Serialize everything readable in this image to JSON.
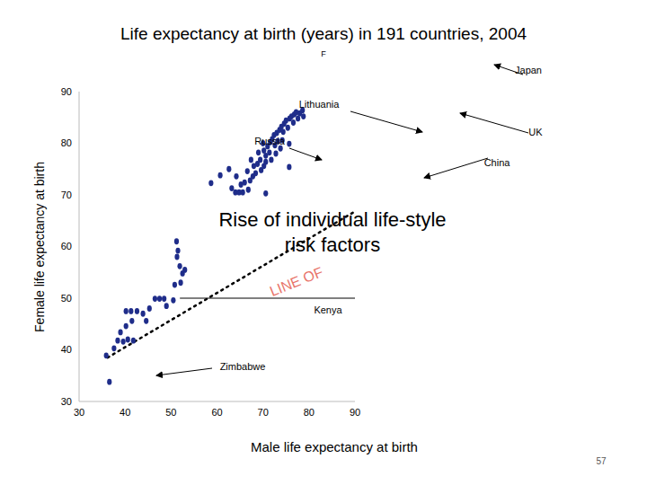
{
  "page_number": "57",
  "chart_data": {
    "type": "scatter",
    "title": "Life expectancy at birth (years) in 191 countries, 2004",
    "subtitle": "F",
    "x_label": "Male life expectancy at birth",
    "y_label": "Female life expectancy at birth",
    "xlim": [
      30,
      90
    ],
    "ylim": [
      30,
      90
    ],
    "xticks": [
      30,
      40,
      50,
      60,
      70,
      80,
      90
    ],
    "yticks": [
      30,
      40,
      50,
      60,
      70,
      80,
      90
    ],
    "grid": false,
    "color": "#1f2d8a",
    "marker": "circle",
    "x": [
      36.6,
      35.9,
      37.6,
      38.4,
      39.6,
      40.6,
      41.8,
      39.0,
      40.2,
      41.5,
      40.2,
      41.3,
      42.6,
      43.9,
      44.6,
      45.3,
      46.5,
      47.5,
      48.5,
      50.5,
      49.0,
      50.8,
      52.1,
      52.5,
      53.0,
      51.9,
      51.3,
      51.5,
      51.2,
      58.7,
      60.7,
      62.6,
      63.2,
      64.0,
      64.8,
      65.6,
      65.2,
      66.0,
      66.8,
      67.2,
      67.8,
      68.4,
      68.0,
      68.8,
      69.4,
      69.6,
      70.6,
      70.2,
      70.6,
      70.6,
      70.2,
      71.0,
      71.4,
      71.6,
      72.0,
      72.4,
      72.6,
      73.0,
      73.2,
      73.6,
      74.0,
      74.4,
      74.6,
      75.0,
      75.4,
      75.8,
      76.2,
      76.6,
      76.8,
      77.2,
      77.6,
      78.0,
      78.6,
      78.8,
      75.7,
      75.7,
      72.8,
      73.8,
      71.8,
      74.2,
      69.0,
      70.0,
      66.6,
      64.2,
      67.4
    ],
    "y": [
      33.8,
      38.9,
      40.3,
      41.8,
      41.6,
      42.0,
      41.8,
      43.4,
      44.6,
      45.6,
      47.5,
      47.5,
      47.5,
      47.0,
      45.6,
      48.0,
      49.9,
      49.9,
      49.9,
      49.6,
      48.5,
      52.6,
      53.0,
      54.8,
      55.5,
      56.2,
      58.0,
      59.2,
      61.0,
      72.3,
      73.8,
      75.0,
      71.3,
      70.5,
      70.5,
      70.5,
      72.0,
      72.4,
      71.0,
      72.8,
      73.6,
      74.2,
      75.6,
      76.0,
      76.8,
      74.8,
      70.3,
      75.6,
      76.4,
      77.6,
      78.6,
      79.4,
      78.2,
      80.2,
      80.8,
      81.6,
      79.6,
      82.0,
      80.4,
      82.6,
      83.2,
      82.2,
      83.8,
      84.4,
      83.0,
      84.8,
      85.2,
      84.0,
      85.6,
      86.0,
      84.8,
      85.8,
      86.4,
      85.2,
      75.4,
      79.9,
      78.0,
      79.0,
      76.8,
      80.6,
      78.2,
      80.0,
      74.6,
      73.6,
      76.8
    ],
    "lines": [
      {
        "points": [
          [
            36.2,
            38.5
          ],
          [
            90,
            66.8
          ]
        ],
        "line_style": "dotted",
        "color": "#000000"
      },
      {
        "points": [
          [
            52,
            50
          ],
          [
            90,
            50
          ]
        ],
        "line_style": "solid",
        "color": "#000000"
      }
    ],
    "labels": [
      "Japan",
      "Lithuania",
      "UK",
      "Russia",
      "China",
      "Kenya",
      "Zimbabwe"
    ],
    "big_annotation": [
      "Rise of individual life-style",
      "risk factors"
    ],
    "rotated_annotation": {
      "text": "LINE OF",
      "color": "#e8746a"
    }
  }
}
